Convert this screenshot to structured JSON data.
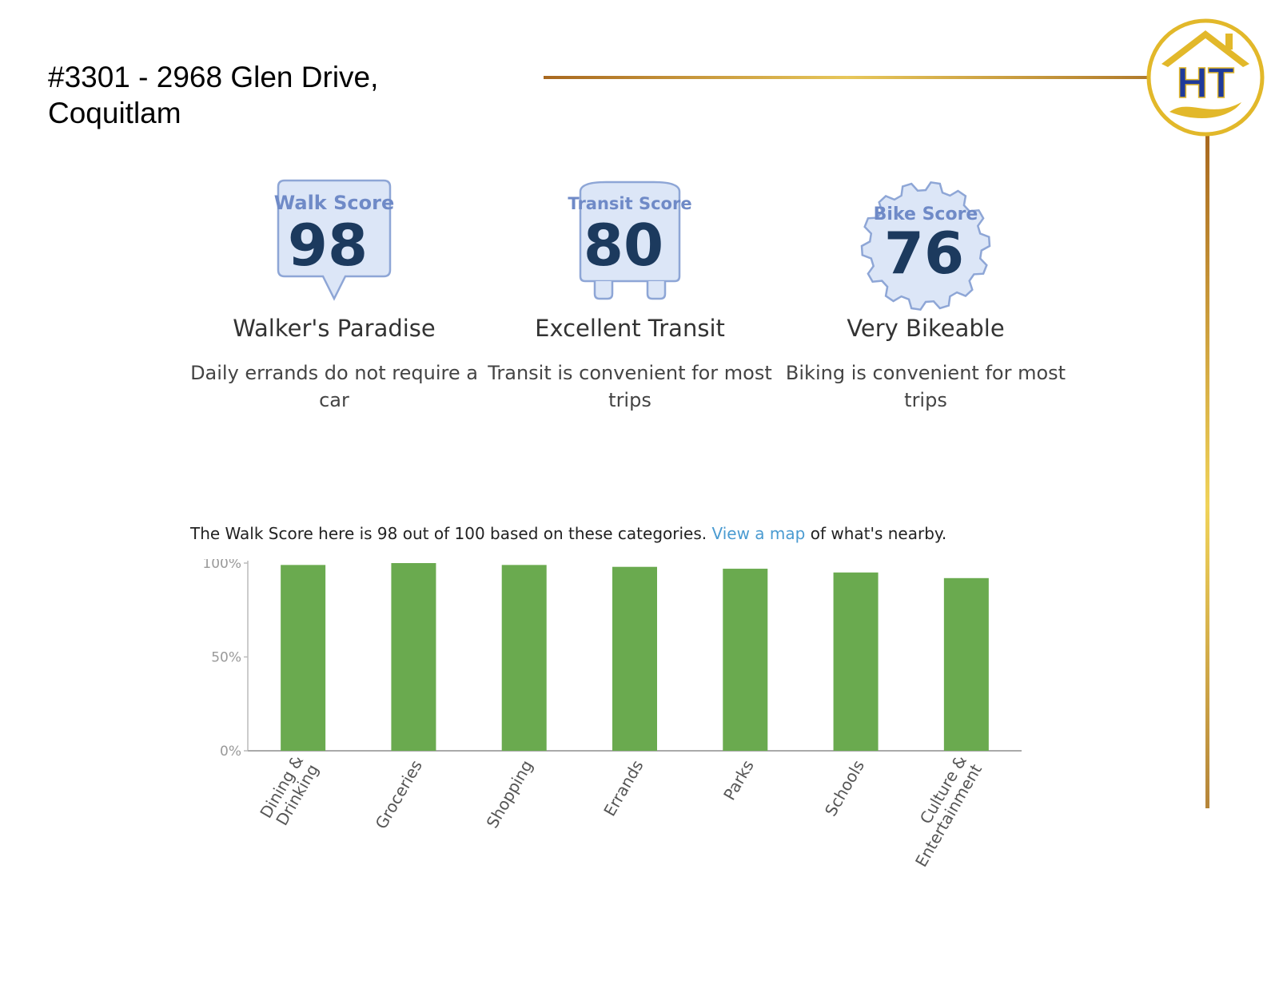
{
  "header": {
    "title_line1": "#3301 - 2968 Glen Drive,",
    "title_line2": "Coquitlam",
    "logo_text": "HT"
  },
  "scores": [
    {
      "badge_title": "Walk Score",
      "value": "98",
      "label": "Walker's Paradise",
      "description": "Daily errands do not require a car",
      "shape": "speech-bubble"
    },
    {
      "badge_title": "Transit Score",
      "value": "80",
      "label": "Excellent Transit",
      "description": "Transit is convenient for most trips",
      "shape": "bus"
    },
    {
      "badge_title": "Bike Score",
      "value": "76",
      "label": "Very Bikeable",
      "description": "Biking is convenient for most trips",
      "shape": "gear"
    }
  ],
  "summary": {
    "text_before": "The Walk Score here is 98 out of 100 based on these categories. ",
    "link": "View a map",
    "text_after": " of what's nearby."
  },
  "colors": {
    "bar": "#6aaa4f",
    "badge_fill": "#dce6f7",
    "badge_stroke": "#8ea6d6",
    "badge_title": "#6f8ac7",
    "badge_value": "#1c3a5e",
    "gold": "#d4a72c",
    "link": "#4a9bd1"
  },
  "chart_data": {
    "type": "bar",
    "categories": [
      "Dining & Drinking",
      "Groceries",
      "Shopping",
      "Errands",
      "Parks",
      "Schools",
      "Culture & Entertainment"
    ],
    "category_lines": [
      [
        "Dining &",
        "Drinking"
      ],
      [
        "Groceries"
      ],
      [
        "Shopping"
      ],
      [
        "Errands"
      ],
      [
        "Parks"
      ],
      [
        "Schools"
      ],
      [
        "Culture &",
        "Entertainment"
      ]
    ],
    "values": [
      99,
      100,
      99,
      98,
      97,
      95,
      92
    ],
    "ylim": [
      0,
      100
    ],
    "yticks": [
      0,
      50,
      100
    ],
    "ytick_labels": [
      "0%",
      "50%",
      "100%"
    ],
    "grid": false
  }
}
